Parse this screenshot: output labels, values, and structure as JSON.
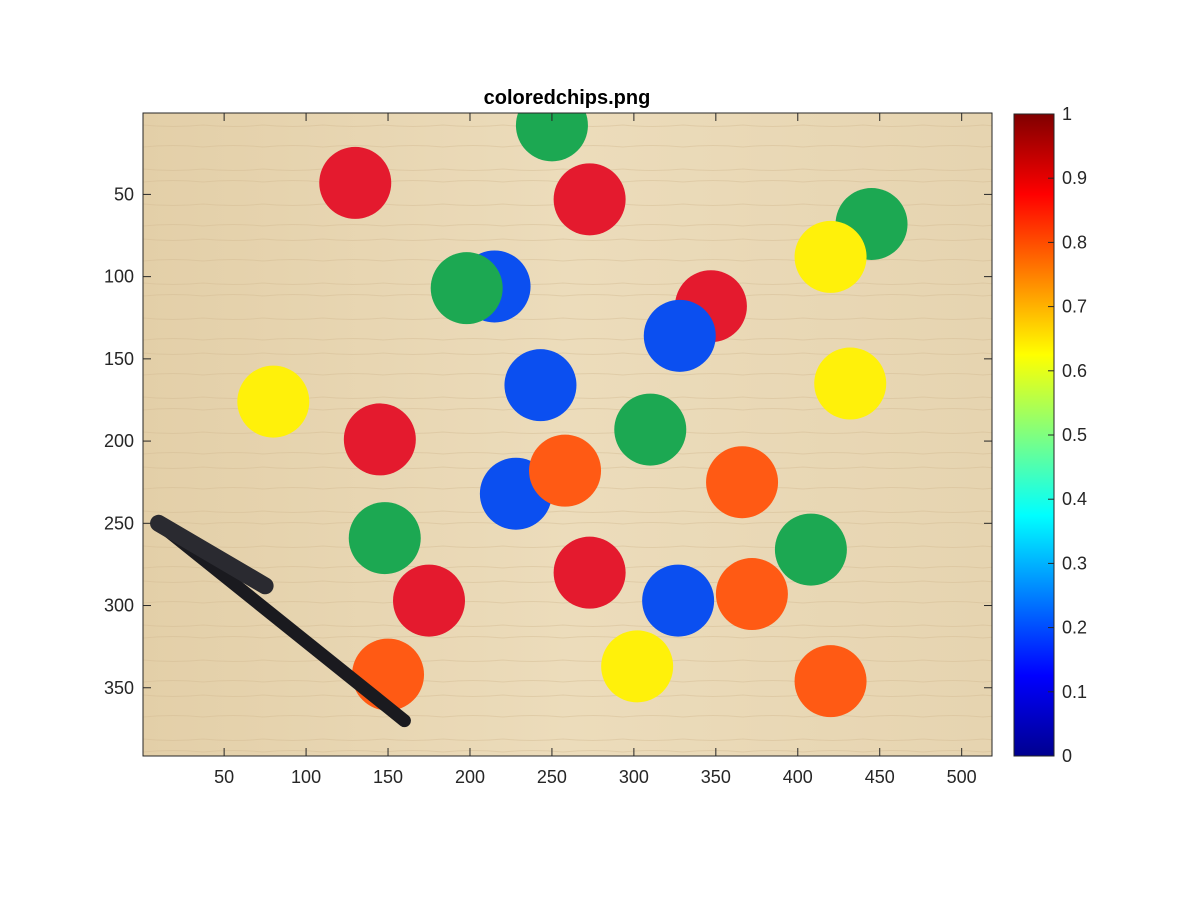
{
  "chart_data": {
    "type": "image",
    "title": "coloredchips.png",
    "xlabel": "",
    "ylabel": "",
    "image_size": [
      518,
      391
    ],
    "xlim": [
      0.5,
      518.5
    ],
    "ylim": [
      0.5,
      391.5
    ],
    "y_direction": "reverse",
    "x_ticks": [
      50,
      100,
      150,
      200,
      250,
      300,
      350,
      400,
      450,
      500
    ],
    "y_ticks": [
      50,
      100,
      150,
      200,
      250,
      300,
      350
    ],
    "colorbar": {
      "colormap": "jet",
      "limits": [
        0,
        1
      ],
      "ticks": [
        0,
        0.1,
        0.2,
        0.3,
        0.4,
        0.5,
        0.6,
        0.7,
        0.8,
        0.9,
        1
      ],
      "tick_labels": [
        "0",
        "0.1",
        "0.2",
        "0.3",
        "0.4",
        "0.5",
        "0.6",
        "0.7",
        "0.8",
        "0.9",
        "1"
      ]
    },
    "chips": [
      {
        "color": "green",
        "x": 250,
        "y": 8
      },
      {
        "color": "red",
        "x": 130,
        "y": 43
      },
      {
        "color": "red",
        "x": 273,
        "y": 53
      },
      {
        "color": "green",
        "x": 445,
        "y": 68
      },
      {
        "color": "yellow",
        "x": 420,
        "y": 88
      },
      {
        "color": "blue",
        "x": 215,
        "y": 106
      },
      {
        "color": "green",
        "x": 198,
        "y": 107
      },
      {
        "color": "red",
        "x": 347,
        "y": 118
      },
      {
        "color": "blue",
        "x": 328,
        "y": 136
      },
      {
        "color": "blue",
        "x": 243,
        "y": 166
      },
      {
        "color": "yellow",
        "x": 432,
        "y": 165
      },
      {
        "color": "yellow",
        "x": 80,
        "y": 176
      },
      {
        "color": "red",
        "x": 145,
        "y": 199
      },
      {
        "color": "green",
        "x": 310,
        "y": 193
      },
      {
        "color": "blue",
        "x": 228,
        "y": 232
      },
      {
        "color": "orange",
        "x": 258,
        "y": 218
      },
      {
        "color": "orange",
        "x": 366,
        "y": 225
      },
      {
        "color": "green",
        "x": 148,
        "y": 259
      },
      {
        "color": "green",
        "x": 408,
        "y": 266
      },
      {
        "color": "red",
        "x": 273,
        "y": 280
      },
      {
        "color": "blue",
        "x": 327,
        "y": 297
      },
      {
        "color": "orange",
        "x": 372,
        "y": 293
      },
      {
        "color": "red",
        "x": 175,
        "y": 297
      },
      {
        "color": "orange",
        "x": 150,
        "y": 342
      },
      {
        "color": "yellow",
        "x": 302,
        "y": 337
      },
      {
        "color": "orange",
        "x": 420,
        "y": 346
      }
    ],
    "pen": {
      "x1": 10,
      "y1": 250,
      "x2": 160,
      "y2": 370
    }
  },
  "palette": {
    "red": "#e41a2e",
    "green": "#1ca852",
    "blue": "#0b4ff0",
    "yellow": "#fff10a",
    "orange": "#ff5a14",
    "wood": "#e9d8b5",
    "pen": "#1a1a1f"
  }
}
